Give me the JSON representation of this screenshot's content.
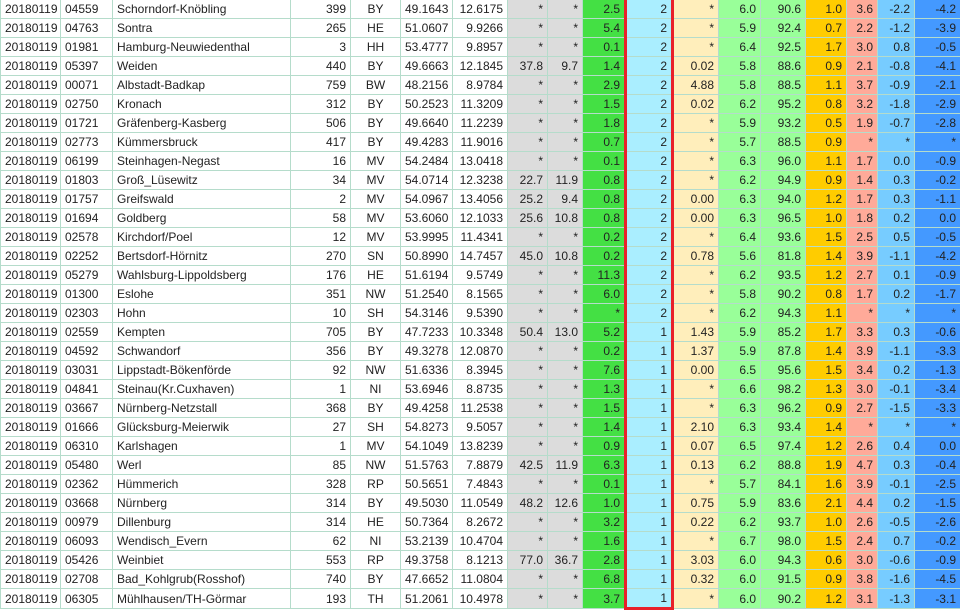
{
  "colors": {
    "highlight_border": "#e8202a",
    "gray": "#dcdcdc",
    "green": "#44e044",
    "light_blue": "#aaeeff",
    "peach": "#ffeebb",
    "light_green": "#99ff99",
    "orange": "#ffcc00",
    "salmon": "#ffaa99",
    "sky": "#77ccff",
    "blue": "#4499ff"
  },
  "rows": [
    [
      "20180119",
      "04559",
      "Schorndorf-Knöbling",
      "399",
      "BY",
      "49.1643",
      "12.6175",
      "*",
      "*",
      "2.5",
      "2",
      "*",
      "6.0",
      "90.6",
      "1.0",
      "3.6",
      "-2.2",
      "-4.2"
    ],
    [
      "20180119",
      "04763",
      "Sontra",
      "265",
      "HE",
      "51.0607",
      "9.9266",
      "*",
      "*",
      "5.4",
      "2",
      "*",
      "5.9",
      "92.4",
      "0.7",
      "2.2",
      "-1.2",
      "-3.9"
    ],
    [
      "20180119",
      "01981",
      "Hamburg-Neuwiedenthal",
      "3",
      "HH",
      "53.4777",
      "9.8957",
      "*",
      "*",
      "0.1",
      "2",
      "*",
      "6.4",
      "92.5",
      "1.7",
      "3.0",
      "0.8",
      "-0.5"
    ],
    [
      "20180119",
      "05397",
      "Weiden",
      "440",
      "BY",
      "49.6663",
      "12.1845",
      "37.8",
      "9.7",
      "1.4",
      "2",
      "0.02",
      "5.8",
      "88.6",
      "0.9",
      "2.1",
      "-0.8",
      "-4.1"
    ],
    [
      "20180119",
      "00071",
      "Albstadt-Badkap",
      "759",
      "BW",
      "48.2156",
      "8.9784",
      "*",
      "*",
      "2.9",
      "2",
      "4.88",
      "5.8",
      "88.5",
      "1.1",
      "3.7",
      "-0.9",
      "-2.1"
    ],
    [
      "20180119",
      "02750",
      "Kronach",
      "312",
      "BY",
      "50.2523",
      "11.3209",
      "*",
      "*",
      "1.5",
      "2",
      "0.02",
      "6.2",
      "95.2",
      "0.8",
      "3.2",
      "-1.8",
      "-2.9"
    ],
    [
      "20180119",
      "01721",
      "Gräfenberg-Kasberg",
      "506",
      "BY",
      "49.6640",
      "11.2239",
      "*",
      "*",
      "1.8",
      "2",
      "*",
      "5.9",
      "93.2",
      "0.5",
      "1.9",
      "-0.7",
      "-2.8"
    ],
    [
      "20180119",
      "02773",
      "Kümmersbruck",
      "417",
      "BY",
      "49.4283",
      "11.9016",
      "*",
      "*",
      "0.7",
      "2",
      "*",
      "5.7",
      "88.5",
      "0.9",
      "*",
      "*",
      "*"
    ],
    [
      "20180119",
      "06199",
      "Steinhagen-Negast",
      "16",
      "MV",
      "54.2484",
      "13.0418",
      "*",
      "*",
      "0.1",
      "2",
      "*",
      "6.3",
      "96.0",
      "1.1",
      "1.7",
      "0.0",
      "-0.9"
    ],
    [
      "20180119",
      "01803",
      "Groß_Lüsewitz",
      "34",
      "MV",
      "54.0714",
      "12.3238",
      "22.7",
      "11.9",
      "0.8",
      "2",
      "*",
      "6.2",
      "94.9",
      "0.9",
      "1.4",
      "0.3",
      "-0.2"
    ],
    [
      "20180119",
      "01757",
      "Greifswald",
      "2",
      "MV",
      "54.0967",
      "13.4056",
      "25.2",
      "9.4",
      "0.8",
      "2",
      "0.00",
      "6.3",
      "94.0",
      "1.2",
      "1.7",
      "0.3",
      "-1.1"
    ],
    [
      "20180119",
      "01694",
      "Goldberg",
      "58",
      "MV",
      "53.6060",
      "12.1033",
      "25.6",
      "10.8",
      "0.8",
      "2",
      "0.00",
      "6.3",
      "96.5",
      "1.0",
      "1.8",
      "0.2",
      "0.0"
    ],
    [
      "20180119",
      "02578",
      "Kirchdorf/Poel",
      "12",
      "MV",
      "53.9995",
      "11.4341",
      "*",
      "*",
      "0.2",
      "2",
      "*",
      "6.4",
      "93.6",
      "1.5",
      "2.5",
      "0.5",
      "-0.5"
    ],
    [
      "20180119",
      "02252",
      "Bertsdorf-Hörnitz",
      "270",
      "SN",
      "50.8990",
      "14.7457",
      "45.0",
      "10.8",
      "0.2",
      "2",
      "0.78",
      "5.6",
      "81.8",
      "1.4",
      "3.9",
      "-1.1",
      "-4.2"
    ],
    [
      "20180119",
      "05279",
      "Wahlsburg-Lippoldsberg",
      "176",
      "HE",
      "51.6194",
      "9.5749",
      "*",
      "*",
      "11.3",
      "2",
      "*",
      "6.2",
      "93.5",
      "1.2",
      "2.7",
      "0.1",
      "-0.9"
    ],
    [
      "20180119",
      "01300",
      "Eslohe",
      "351",
      "NW",
      "51.2540",
      "8.1565",
      "*",
      "*",
      "6.0",
      "2",
      "*",
      "5.8",
      "90.2",
      "0.8",
      "1.7",
      "0.2",
      "-1.7"
    ],
    [
      "20180119",
      "02303",
      "Hohn",
      "10",
      "SH",
      "54.3146",
      "9.5390",
      "*",
      "*",
      "*",
      "2",
      "*",
      "6.2",
      "94.3",
      "1.1",
      "*",
      "*",
      "*"
    ],
    [
      "20180119",
      "02559",
      "Kempten",
      "705",
      "BY",
      "47.7233",
      "10.3348",
      "50.4",
      "13.0",
      "5.2",
      "1",
      "1.43",
      "5.9",
      "85.2",
      "1.7",
      "3.3",
      "0.3",
      "-0.6"
    ],
    [
      "20180119",
      "04592",
      "Schwandorf",
      "356",
      "BY",
      "49.3278",
      "12.0870",
      "*",
      "*",
      "0.2",
      "1",
      "1.37",
      "5.9",
      "87.8",
      "1.4",
      "3.9",
      "-1.1",
      "-3.3"
    ],
    [
      "20180119",
      "03031",
      "Lippstadt-Bökenförde",
      "92",
      "NW",
      "51.6336",
      "8.3945",
      "*",
      "*",
      "7.6",
      "1",
      "0.00",
      "6.5",
      "95.6",
      "1.5",
      "3.4",
      "0.2",
      "-1.3"
    ],
    [
      "20180119",
      "04841",
      "Steinau(Kr.Cuxhaven)",
      "1",
      "NI",
      "53.6946",
      "8.8735",
      "*",
      "*",
      "1.3",
      "1",
      "*",
      "6.6",
      "98.2",
      "1.3",
      "3.0",
      "-0.1",
      "-3.4"
    ],
    [
      "20180119",
      "03667",
      "Nürnberg-Netzstall",
      "368",
      "BY",
      "49.4258",
      "11.2538",
      "*",
      "*",
      "1.5",
      "1",
      "*",
      "6.3",
      "96.2",
      "0.9",
      "2.7",
      "-1.5",
      "-3.3"
    ],
    [
      "20180119",
      "01666",
      "Glücksburg-Meierwik",
      "27",
      "SH",
      "54.8273",
      "9.5057",
      "*",
      "*",
      "1.4",
      "1",
      "2.10",
      "6.3",
      "93.4",
      "1.4",
      "*",
      "*",
      "*"
    ],
    [
      "20180119",
      "06310",
      "Karlshagen",
      "1",
      "MV",
      "54.1049",
      "13.8239",
      "*",
      "*",
      "0.9",
      "1",
      "0.07",
      "6.5",
      "97.4",
      "1.2",
      "2.6",
      "0.4",
      "0.0"
    ],
    [
      "20180119",
      "05480",
      "Werl",
      "85",
      "NW",
      "51.5763",
      "7.8879",
      "42.5",
      "11.9",
      "6.3",
      "1",
      "0.13",
      "6.2",
      "88.8",
      "1.9",
      "4.7",
      "0.3",
      "-0.4"
    ],
    [
      "20180119",
      "02362",
      "Hümmerich",
      "328",
      "RP",
      "50.5651",
      "7.4843",
      "*",
      "*",
      "0.1",
      "1",
      "*",
      "5.7",
      "84.1",
      "1.6",
      "3.9",
      "-0.1",
      "-2.5"
    ],
    [
      "20180119",
      "03668",
      "Nürnberg",
      "314",
      "BY",
      "49.5030",
      "11.0549",
      "48.2",
      "12.6",
      "1.0",
      "1",
      "0.75",
      "5.9",
      "83.6",
      "2.1",
      "4.4",
      "0.2",
      "-1.5"
    ],
    [
      "20180119",
      "00979",
      "Dillenburg",
      "314",
      "HE",
      "50.7364",
      "8.2672",
      "*",
      "*",
      "3.2",
      "1",
      "0.22",
      "6.2",
      "93.7",
      "1.0",
      "2.6",
      "-0.5",
      "-2.6"
    ],
    [
      "20180119",
      "06093",
      "Wendisch_Evern",
      "62",
      "NI",
      "53.2139",
      "10.4704",
      "*",
      "*",
      "1.6",
      "1",
      "*",
      "6.7",
      "98.0",
      "1.5",
      "2.4",
      "0.7",
      "-0.2"
    ],
    [
      "20180119",
      "05426",
      "Weinbiet",
      "553",
      "RP",
      "49.3758",
      "8.1213",
      "77.0",
      "36.7",
      "2.8",
      "1",
      "3.03",
      "6.0",
      "94.3",
      "0.6",
      "3.0",
      "-0.6",
      "-0.9"
    ],
    [
      "20180119",
      "02708",
      "Bad_Kohlgrub(Rosshof)",
      "740",
      "BY",
      "47.6652",
      "11.0804",
      "*",
      "*",
      "6.8",
      "1",
      "0.32",
      "6.0",
      "91.5",
      "0.9",
      "3.8",
      "-1.6",
      "-4.5"
    ],
    [
      "20180119",
      "06305",
      "Mühlhausen/TH-Görmar",
      "193",
      "TH",
      "51.2061",
      "10.4978",
      "*",
      "*",
      "3.7",
      "1",
      "*",
      "6.0",
      "90.2",
      "1.2",
      "3.1",
      "-1.3",
      "-3.1"
    ]
  ]
}
